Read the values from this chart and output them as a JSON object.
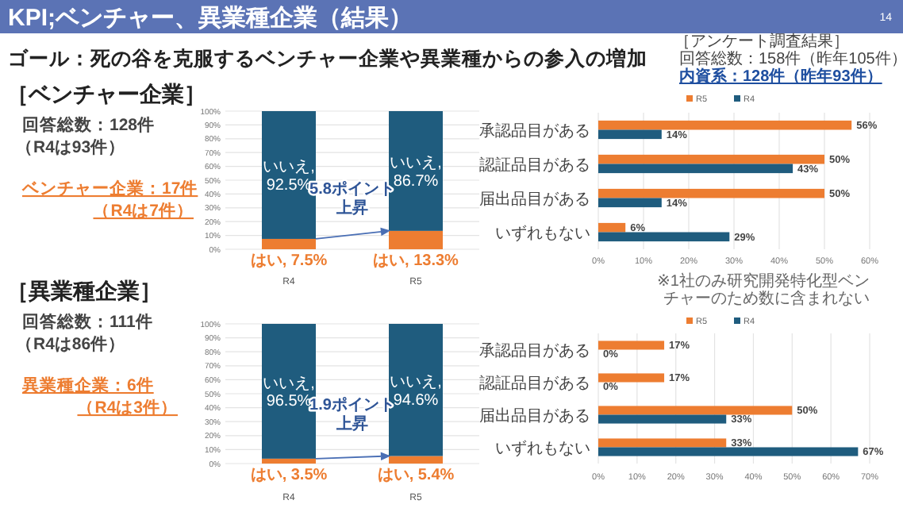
{
  "chart_data": [
    {
      "type": "other",
      "title": "KPI;ベンチャー、異業種企業（結果）",
      "annotations": [
        "14",
        "ゴール：死の谷を克服するベンチャー企業や異業種からの参入の増加",
        "［アンケート調査結果］",
        "回答総数：158件（昨年105件）",
        "内資系：128件（昨年93件）"
      ]
    },
    {
      "type": "other",
      "title": "［ベンチャー企業］",
      "annotations": [
        "回答総数：128件",
        "（R4は93件）",
        "ベンチャー企業：17件",
        "（R4は7件）"
      ]
    },
    {
      "type": "bar",
      "stacked": true,
      "categories": [
        "R4",
        "R5"
      ],
      "ylim": [
        0,
        100
      ],
      "yticks": [
        {
          "value": 0,
          "label": "0%"
        },
        {
          "value": 10,
          "label": "10%"
        },
        {
          "value": 20,
          "label": "20%"
        },
        {
          "value": 30,
          "label": "30%"
        },
        {
          "value": 40,
          "label": "40%"
        },
        {
          "value": 50,
          "label": "50%"
        },
        {
          "value": 60,
          "label": "60%"
        },
        {
          "value": 70,
          "label": "70%"
        },
        {
          "value": 80,
          "label": "80%"
        },
        {
          "value": 90,
          "label": "90%"
        },
        {
          "value": 100,
          "label": "100%"
        }
      ],
      "grid": "y",
      "annotations": [
        "5.8ポイント上昇"
      ],
      "series": [
        {
          "color": "#ed7d31",
          "values": [
            7.5,
            13.3
          ],
          "value_labels": [
            "はい, 7.5%",
            "はい, 13.3%"
          ]
        },
        {
          "color": "#1f5c7e",
          "values": [
            92.5,
            86.7
          ],
          "value_labels": [
            "いいえ, 92.5%",
            "いいえ, 86.7%"
          ]
        }
      ]
    },
    {
      "type": "bar",
      "orientation": "horizontal",
      "categories": [
        "承認品目がある",
        "認証品目がある",
        "届出品目がある",
        "いずれもない"
      ],
      "xlim": [
        0,
        60
      ],
      "xticks": [
        {
          "value": 0,
          "label": "0%"
        },
        {
          "value": 10,
          "label": "10%"
        },
        {
          "value": 20,
          "label": "20%"
        },
        {
          "value": 30,
          "label": "30%"
        },
        {
          "value": 40,
          "label": "40%"
        },
        {
          "value": 50,
          "label": "50%"
        },
        {
          "value": 60,
          "label": "60%"
        }
      ],
      "grid": "x",
      "legend": "top",
      "annotations": [
        "※1社のみ研究開発特化型ベンチャーのため数に含まれない"
      ],
      "series": [
        {
          "name": "R5",
          "color": "#ed7d31",
          "values": [
            56,
            50,
            50,
            6
          ],
          "value_labels": [
            "56%",
            "50%",
            "50%",
            "6%"
          ]
        },
        {
          "name": "R4",
          "color": "#1f5c7e",
          "values": [
            14,
            43,
            14,
            29
          ],
          "value_labels": [
            "14%",
            "43%",
            "14%",
            "29%"
          ]
        }
      ]
    },
    {
      "type": "other",
      "title": "［異業種企業］",
      "annotations": [
        "回答総数：111件",
        "（R4は86件）",
        "異業種企業：6件",
        "（R4は3件）"
      ]
    },
    {
      "type": "bar",
      "stacked": true,
      "categories": [
        "R4",
        "R5"
      ],
      "ylim": [
        0,
        100
      ],
      "yticks": [
        {
          "value": 0,
          "label": "0%"
        },
        {
          "value": 10,
          "label": "10%"
        },
        {
          "value": 20,
          "label": "20%"
        },
        {
          "value": 30,
          "label": "30%"
        },
        {
          "value": 40,
          "label": "40%"
        },
        {
          "value": 50,
          "label": "50%"
        },
        {
          "value": 60,
          "label": "60%"
        },
        {
          "value": 70,
          "label": "70%"
        },
        {
          "value": 80,
          "label": "80%"
        },
        {
          "value": 90,
          "label": "90%"
        },
        {
          "value": 100,
          "label": "100%"
        }
      ],
      "grid": "y",
      "annotations": [
        "1.9ポイント上昇"
      ],
      "series": [
        {
          "color": "#ed7d31",
          "values": [
            3.5,
            5.4
          ],
          "value_labels": [
            "はい, 3.5%",
            "はい, 5.4%"
          ]
        },
        {
          "color": "#1f5c7e",
          "values": [
            96.5,
            94.6
          ],
          "value_labels": [
            "いいえ, 96.5%",
            "いいえ, 94.6%"
          ]
        }
      ]
    },
    {
      "type": "bar",
      "orientation": "horizontal",
      "categories": [
        "承認品目がある",
        "認証品目がある",
        "届出品目がある",
        "いずれもない"
      ],
      "xlim": [
        0,
        70
      ],
      "xticks": [
        {
          "value": 0,
          "label": "0%"
        },
        {
          "value": 10,
          "label": "10%"
        },
        {
          "value": 20,
          "label": "20%"
        },
        {
          "value": 30,
          "label": "30%"
        },
        {
          "value": 40,
          "label": "40%"
        },
        {
          "value": 50,
          "label": "50%"
        },
        {
          "value": 60,
          "label": "60%"
        },
        {
          "value": 70,
          "label": "70%"
        }
      ],
      "grid": "x",
      "legend": "top",
      "series": [
        {
          "name": "R5",
          "color": "#ed7d31",
          "values": [
            17,
            17,
            50,
            33
          ],
          "value_labels": [
            "17%",
            "17%",
            "50%",
            "33%"
          ]
        },
        {
          "name": "R4",
          "color": "#1f5c7e",
          "values": [
            0,
            0,
            33,
            67
          ],
          "value_labels": [
            "0%",
            "0%",
            "33%",
            "67%"
          ]
        }
      ]
    }
  ]
}
